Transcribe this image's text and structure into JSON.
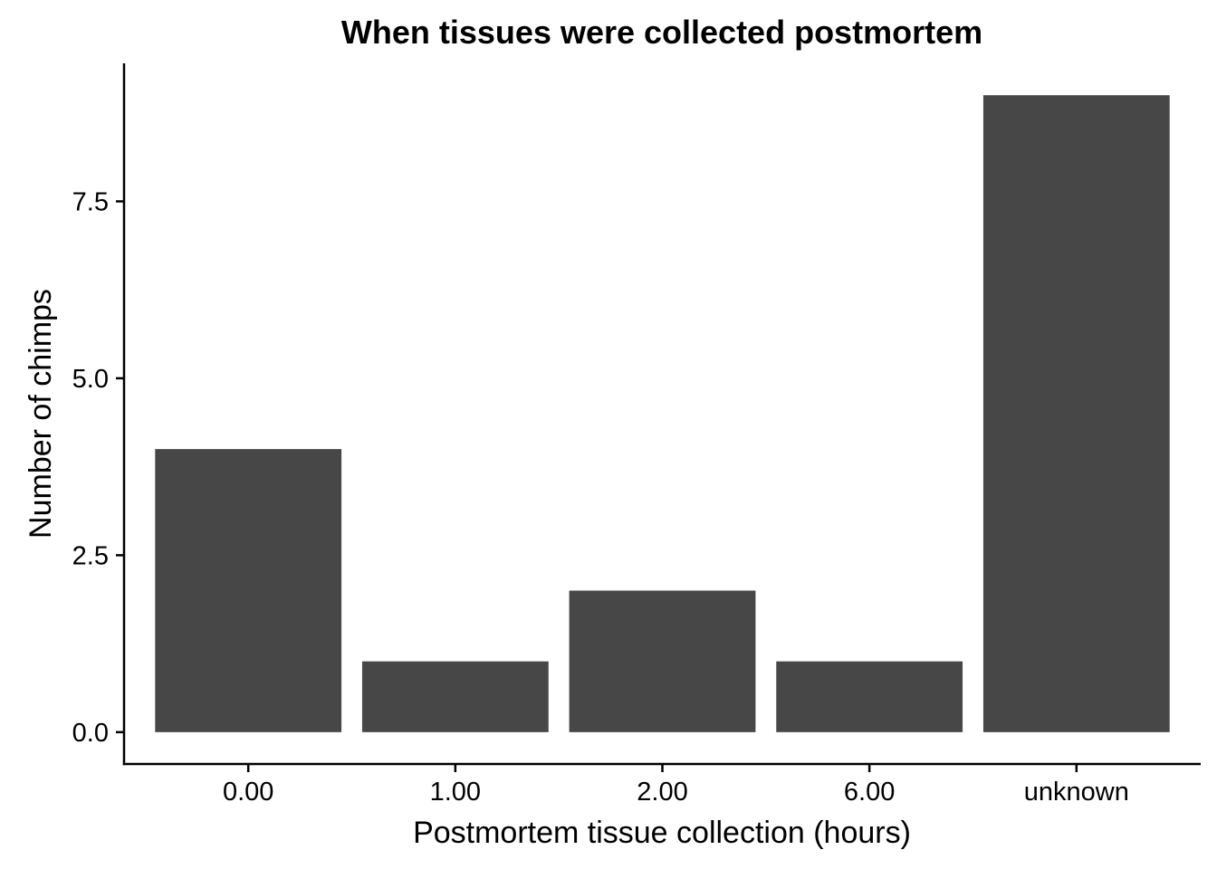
{
  "chart_data": {
    "type": "bar",
    "title": "When tissues were collected postmortem",
    "xlabel": "Postmortem tissue collection (hours)",
    "ylabel": "Number of chimps",
    "categories": [
      "0.00",
      "1.00",
      "2.00",
      "6.00",
      "unknown"
    ],
    "values": [
      4,
      1,
      2,
      1,
      9
    ],
    "ylim": [
      -0.45,
      9.45
    ],
    "yticks": [
      0.0,
      2.5,
      5.0,
      7.5
    ],
    "ytick_labels": [
      "0.0",
      "2.5",
      "5.0",
      "7.5"
    ],
    "grid": false,
    "legend": "none",
    "bar_color": "#474747"
  }
}
